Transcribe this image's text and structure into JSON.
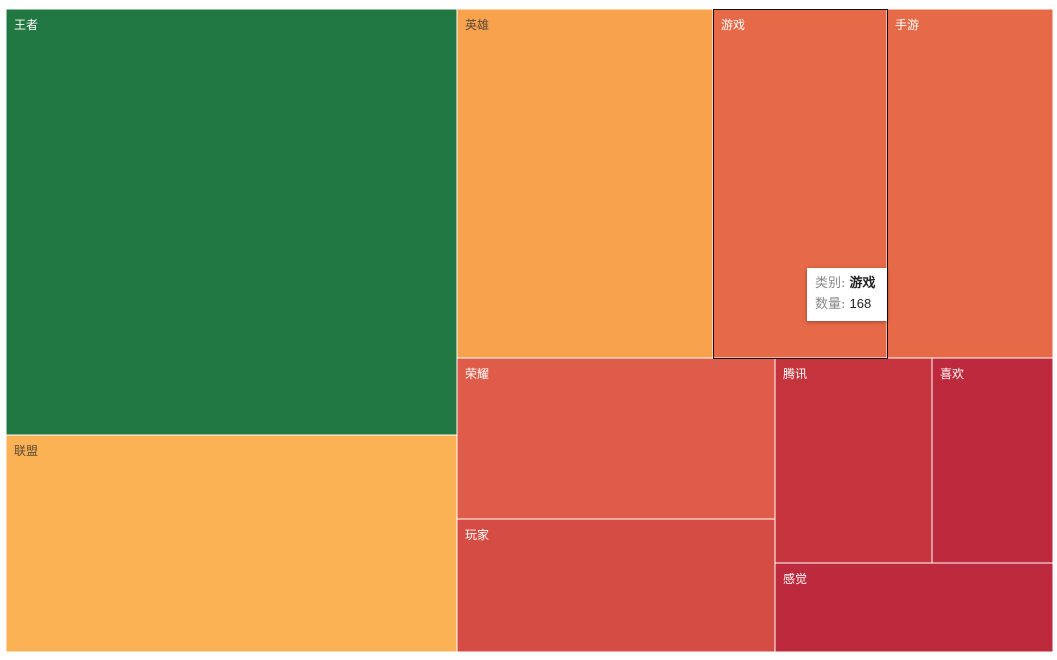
{
  "chart_data": {
    "type": "treemap",
    "cells": [
      {
        "name": "王者",
        "color": "#227842",
        "dark_label": false
      },
      {
        "name": "联盟",
        "color": "#fbb254",
        "dark_label": true
      },
      {
        "name": "英雄",
        "color": "#f9a24e",
        "dark_label": true
      },
      {
        "name": "游戏",
        "color": "#e76a48",
        "dark_label": false,
        "value": 168
      },
      {
        "name": "手游",
        "color": "#e76a48",
        "dark_label": false
      },
      {
        "name": "荣耀",
        "color": "#df5c4a",
        "dark_label": false
      },
      {
        "name": "玩家",
        "color": "#d44c43",
        "dark_label": false
      },
      {
        "name": "腾讯",
        "color": "#c5343d",
        "dark_label": false
      },
      {
        "name": "喜欢",
        "color": "#bd2a3d",
        "dark_label": false
      },
      {
        "name": "感觉",
        "color": "#bd2a3d",
        "dark_label": false
      }
    ],
    "highlighted": "游戏"
  },
  "tooltip": {
    "category_key": "类别:",
    "category_value": "游戏",
    "count_key": "数量:",
    "count_value": "168"
  }
}
